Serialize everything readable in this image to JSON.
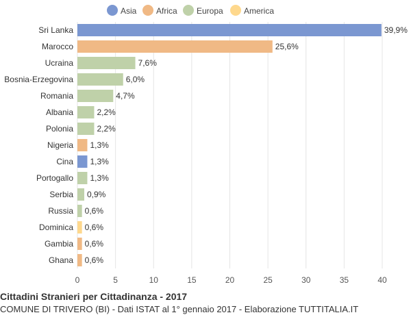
{
  "footer": {
    "title": "Cittadini Stranieri per Cittadinanza - 2017",
    "subtitle": "COMUNE DI TRIVERO (BI) - Dati ISTAT al 1° gennaio 2017 - Elaborazione TUTTITALIA.IT"
  },
  "chart_data": {
    "type": "bar",
    "orientation": "horizontal",
    "legend": {
      "position": "top",
      "entries": [
        {
          "name": "Asia",
          "color": "#7b97d1"
        },
        {
          "name": "Africa",
          "color": "#f0b985"
        },
        {
          "name": "Europa",
          "color": "#bfd1a9"
        },
        {
          "name": "America",
          "color": "#fed88d"
        }
      ]
    },
    "categories": [
      "Sri Lanka",
      "Marocco",
      "Ucraina",
      "Bosnia-Erzegovina",
      "Romania",
      "Albania",
      "Polonia",
      "Nigeria",
      "Cina",
      "Portogallo",
      "Serbia",
      "Russia",
      "Dominica",
      "Gambia",
      "Ghana"
    ],
    "values": [
      39.9,
      25.6,
      7.6,
      6.0,
      4.7,
      2.2,
      2.2,
      1.3,
      1.3,
      1.3,
      0.9,
      0.6,
      0.6,
      0.6,
      0.6
    ],
    "value_labels": [
      "39,9%",
      "25,6%",
      "7,6%",
      "6,0%",
      "4,7%",
      "2,2%",
      "2,2%",
      "1,3%",
      "1,3%",
      "1,3%",
      "0,9%",
      "0,6%",
      "0,6%",
      "0,6%",
      "0,6%"
    ],
    "groups": [
      "Asia",
      "Africa",
      "Europa",
      "Europa",
      "Europa",
      "Europa",
      "Europa",
      "Africa",
      "Asia",
      "Europa",
      "Europa",
      "Europa",
      "America",
      "Africa",
      "Africa"
    ],
    "xlim": [
      0,
      40
    ],
    "xticks": [
      0,
      5,
      10,
      15,
      20,
      25,
      30,
      35,
      40
    ],
    "grid": true
  }
}
